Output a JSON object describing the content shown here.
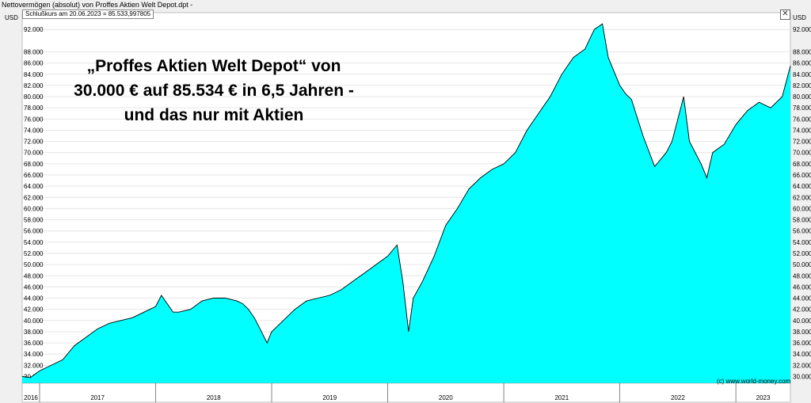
{
  "window": {
    "title": "Nettovermögen (absolut) von Proffes Aktien Welt Depot.dpt -",
    "info": "Schlußkurs am 20.06.2023 = 85.533,997805",
    "close_glyph": "✕",
    "credit": "(c) www.world-money.com"
  },
  "headline": {
    "line1": "„Proffes Aktien Welt Depot“ von",
    "line2": "30.000 € auf 85.534 € in 6,5 Jahren -",
    "line3": "und das nur mit Aktien"
  },
  "colors": {
    "fill": "#00ffff",
    "line": "#000000",
    "background": "#ffffff",
    "frame": "#f0f0f0",
    "grid": "#e6e6e6"
  },
  "chart_data": {
    "type": "area",
    "currency_label": "USD",
    "ylim": [
      28800,
      95000
    ],
    "y_ticks": [
      30000,
      32000,
      34000,
      36000,
      38000,
      40000,
      42000,
      44000,
      46000,
      48000,
      50000,
      52000,
      54000,
      56000,
      58000,
      60000,
      62000,
      64000,
      66000,
      68000,
      70000,
      72000,
      74000,
      76000,
      78000,
      80000,
      82000,
      84000,
      86000,
      88000,
      92000
    ],
    "y_tick_labels": [
      "30.000",
      "32.000",
      "34.000",
      "36.000",
      "38.000",
      "40.000",
      "42.000",
      "44.000",
      "46.000",
      "48.000",
      "50.000",
      "52.000",
      "54.000",
      "56.000",
      "58.000",
      "60.000",
      "62.000",
      "64.000",
      "66.000",
      "68.000",
      "70.000",
      "72.000",
      "74.000",
      "76.000",
      "78.000",
      "80.000",
      "82.000",
      "84.000",
      "86.000",
      "88.000",
      "92.000"
    ],
    "x_range": [
      2016.85,
      2023.47
    ],
    "year_labels": [
      "2016",
      "2017",
      "2018",
      "2019",
      "2020",
      "2021",
      "2022",
      "2023"
    ],
    "year_starts": [
      2017,
      2018,
      2019,
      2020,
      2021,
      2022,
      2023
    ],
    "x": [
      2016.85,
      2016.92,
      2017.0,
      2017.1,
      2017.2,
      2017.3,
      2017.4,
      2017.5,
      2017.6,
      2017.7,
      2017.8,
      2017.9,
      2018.0,
      2018.05,
      2018.1,
      2018.15,
      2018.2,
      2018.3,
      2018.4,
      2018.5,
      2018.6,
      2018.7,
      2018.75,
      2018.8,
      2018.85,
      2018.9,
      2018.96,
      2019.0,
      2019.1,
      2019.2,
      2019.3,
      2019.4,
      2019.5,
      2019.6,
      2019.7,
      2019.8,
      2019.9,
      2020.0,
      2020.08,
      2020.13,
      2020.18,
      2020.22,
      2020.3,
      2020.4,
      2020.5,
      2020.6,
      2020.7,
      2020.8,
      2020.9,
      2021.0,
      2021.1,
      2021.2,
      2021.3,
      2021.4,
      2021.5,
      2021.6,
      2021.7,
      2021.78,
      2021.85,
      2021.9,
      2022.0,
      2022.05,
      2022.1,
      2022.2,
      2022.3,
      2022.4,
      2022.45,
      2022.5,
      2022.55,
      2022.6,
      2022.7,
      2022.75,
      2022.8,
      2022.9,
      2023.0,
      2023.1,
      2023.2,
      2023.3,
      2023.4,
      2023.47
    ],
    "y": [
      30000,
      29800,
      31000,
      32000,
      33000,
      35500,
      37000,
      38500,
      39500,
      40000,
      40500,
      41500,
      42500,
      44500,
      43000,
      41500,
      41500,
      42000,
      43500,
      44000,
      44000,
      43500,
      43000,
      42000,
      40500,
      38500,
      36000,
      38000,
      40000,
      42000,
      43500,
      44000,
      44500,
      45500,
      47000,
      48500,
      50000,
      51500,
      53500,
      47000,
      38000,
      44000,
      47000,
      51500,
      57000,
      60000,
      63500,
      65500,
      67000,
      68000,
      70000,
      74000,
      77000,
      80000,
      84000,
      87000,
      88500,
      92000,
      93000,
      87000,
      82000,
      80500,
      79500,
      73000,
      67500,
      70000,
      72000,
      76000,
      80000,
      72000,
      68000,
      65500,
      70000,
      71500,
      75000,
      77500,
      79000,
      78000,
      80000,
      85500
    ],
    "xlabel": "",
    "ylabel": "",
    "grid": true
  }
}
